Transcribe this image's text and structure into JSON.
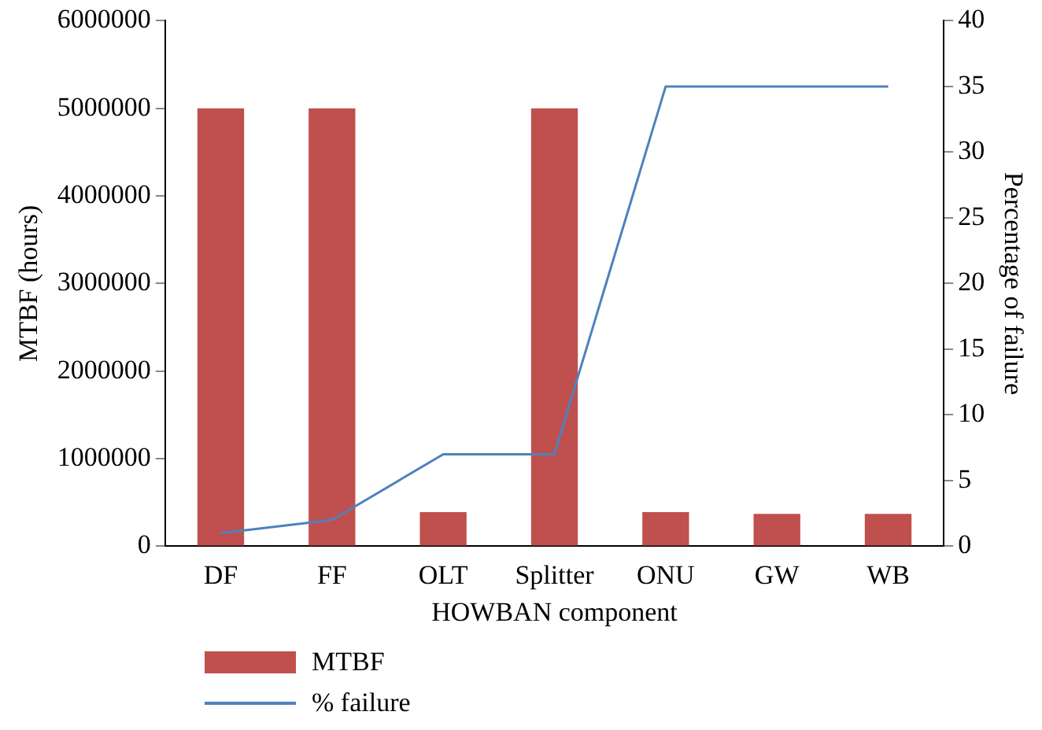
{
  "chart_data": {
    "type": "bar",
    "xlabel": "HOWBAN component",
    "ylabel": "MTBF (hours)",
    "y2label": "Percentage of failure",
    "categories": [
      "DF",
      "FF",
      "OLT",
      "Splitter",
      "ONU",
      "GW",
      "WB"
    ],
    "series": [
      {
        "name": "MTBF",
        "color": "#c0504d",
        "values": [
          5000000,
          5000000,
          390000,
          5000000,
          390000,
          370000,
          370000
        ]
      },
      {
        "name": "% failure",
        "type": "line",
        "axis": "y2",
        "color": "#4f81bd",
        "values": [
          1,
          2,
          7,
          7,
          35,
          35,
          35
        ]
      }
    ],
    "ylim": [
      0,
      6000000
    ],
    "yticks": [
      0,
      1000000,
      2000000,
      3000000,
      4000000,
      5000000,
      6000000
    ],
    "y2lim": [
      0,
      40
    ],
    "y2ticks": [
      0,
      5,
      10,
      15,
      20,
      25,
      30,
      35,
      40
    ],
    "grid": false,
    "legend": "bottom",
    "marker": "none",
    "line_style": "solid"
  }
}
